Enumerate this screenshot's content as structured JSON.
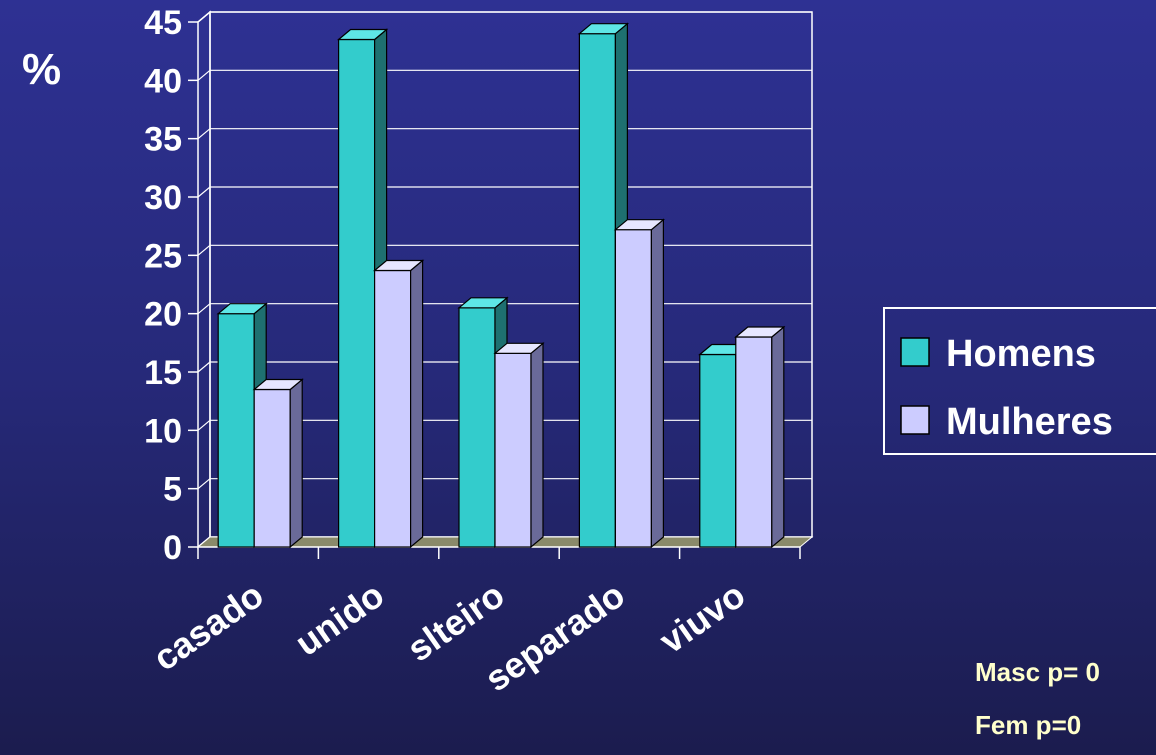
{
  "chart_data": {
    "type": "bar",
    "ylabel": "%",
    "ylim": [
      0,
      45
    ],
    "yticks": [
      "0",
      "5",
      "10",
      "15",
      "20",
      "25",
      "30",
      "35",
      "40",
      "45"
    ],
    "categories": [
      "casado",
      "unido",
      "slteiro",
      "separado",
      "viuvo"
    ],
    "series": [
      {
        "name": "Homens",
        "values": [
          20,
          43.5,
          20.5,
          44,
          16.5
        ]
      },
      {
        "name": "Mulheres",
        "values": [
          13.5,
          23.7,
          16.6,
          27.2,
          18
        ]
      }
    ],
    "grid": true,
    "legend_position": "right"
  },
  "colors": {
    "homens_front": "#33cccc",
    "homens_side": "#1e7070",
    "homens_top": "#5ee6e6",
    "mulheres_front": "#ccccff",
    "mulheres_side": "#6a6a99",
    "mulheres_top": "#e6e6ff",
    "floor": "#8a8a6a"
  },
  "annotations": {
    "masc": "Masc p= 0",
    "fem": "Fem   p=0"
  }
}
